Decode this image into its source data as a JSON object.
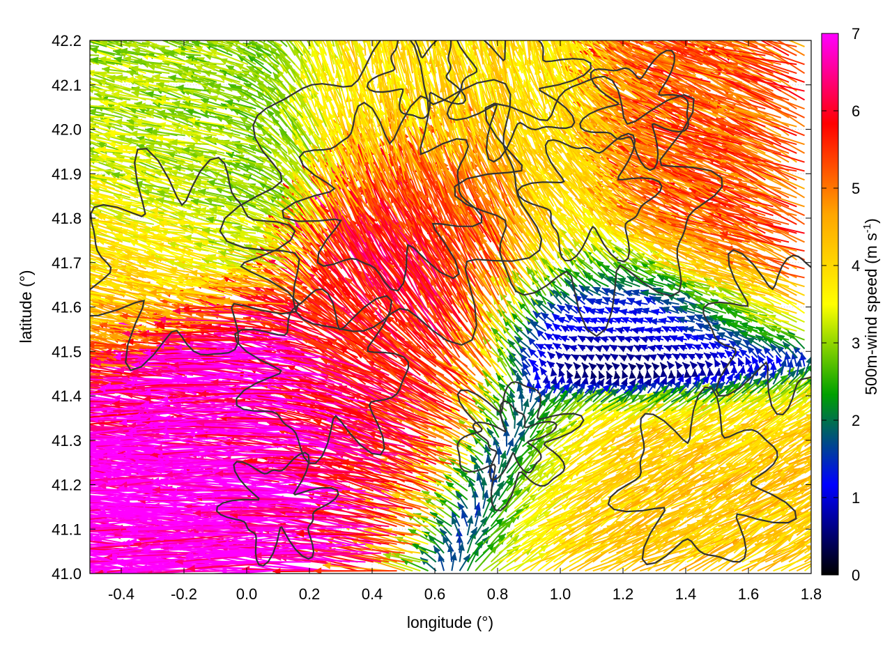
{
  "chart_data": {
    "type": "vector-field",
    "title": "",
    "xlabel": "longitude (°)",
    "ylabel": "latitude (°)",
    "colorbar_label": "500m-wind speed (m s",
    "colorbar_label_sup": "-1",
    "colorbar_label_tail": ")",
    "xlim": [
      -0.5,
      1.8
    ],
    "ylim": [
      41.0,
      42.2
    ],
    "colorbar_range": [
      0,
      7
    ],
    "colormap": [
      "#000000",
      "#0000ff",
      "#00a000",
      "#ffff00",
      "#ffa500",
      "#ff0000",
      "#ff00ff"
    ],
    "grid": true,
    "contours": "terrain elevation (dark gray)",
    "x_ticks": [
      "-0.4",
      "-0.2",
      "0.0",
      "0.2",
      "0.4",
      "0.6",
      "0.8",
      "1.0",
      "1.2",
      "1.4",
      "1.6",
      "1.8"
    ],
    "x_tick_values": [
      -0.4,
      -0.2,
      0.0,
      0.2,
      0.4,
      0.6,
      0.8,
      1.0,
      1.2,
      1.4,
      1.6,
      1.8
    ],
    "y_ticks": [
      "41.0",
      "41.1",
      "41.2",
      "41.3",
      "41.4",
      "41.5",
      "41.6",
      "41.7",
      "41.8",
      "41.9",
      "42.0",
      "42.1",
      "42.2"
    ],
    "y_tick_values": [
      41.0,
      41.1,
      41.2,
      41.3,
      41.4,
      41.5,
      41.6,
      41.7,
      41.8,
      41.9,
      42.0,
      42.1,
      42.2
    ],
    "colorbar_ticks": [
      "0",
      "1",
      "2",
      "3",
      "4",
      "5",
      "6",
      "7"
    ],
    "colorbar_tick_values": [
      0,
      1,
      2,
      3,
      4,
      5,
      6,
      7
    ],
    "wind_regions": [
      {
        "area": "west-southwest lowlands (lon -0.5–0.5, lat 41.1–41.45)",
        "speed_m_s": 7,
        "direction": "from east (westward flow)"
      },
      {
        "area": "central valley (lon 0.4–0.7, lat 41.4–41.8)",
        "speed_m_s": 6.5,
        "direction": "from southeast"
      },
      {
        "area": "southeast (lon 0.9–1.8, lat 41.0–41.3)",
        "speed_m_s": 4.5,
        "direction": "from southwest (northeastward flow)"
      },
      {
        "area": "east-central calm (lon 1.0–1.5, lat 41.45–41.65)",
        "speed_m_s": 1,
        "direction": "variable, from east"
      },
      {
        "area": "northwest (lon -0.5–0.2, lat 41.8–42.2)",
        "speed_m_s": 3,
        "direction": "from east"
      },
      {
        "area": "north-central (lon 0.3–0.9, lat 41.9–42.2)",
        "speed_m_s": 4,
        "direction": "from south"
      },
      {
        "area": "northeast (lon 1.3–1.8, lat 41.7–42.1)",
        "speed_m_s": 5.5,
        "direction": "from east-southeast"
      }
    ]
  }
}
